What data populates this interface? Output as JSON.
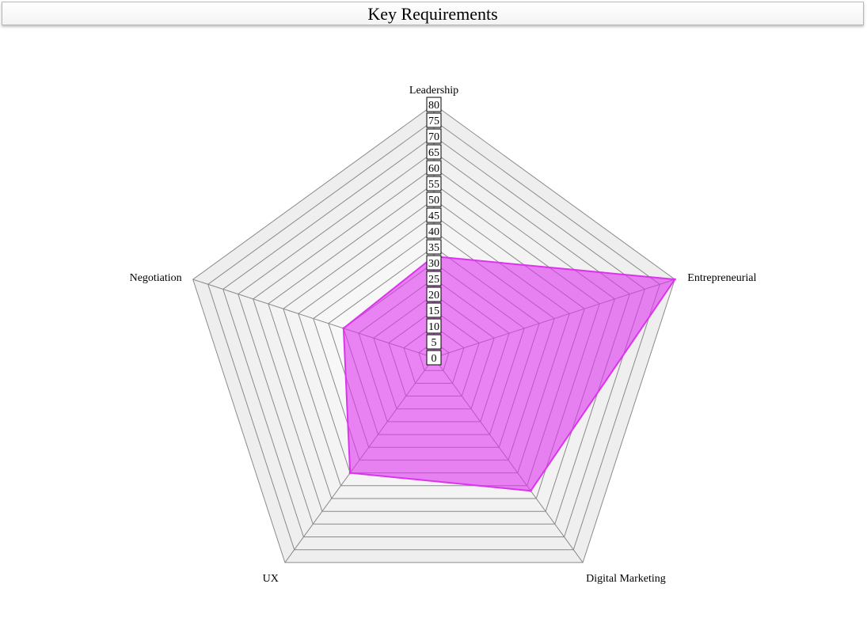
{
  "chart_data": {
    "type": "radar",
    "title": "Key Requirements",
    "axes": [
      "Leadership",
      "Entrepreneurial",
      "Digital Marketing",
      "UX",
      "Negotiation"
    ],
    "series": [
      {
        "values": [
          32,
          80,
          52,
          45,
          30
        ],
        "color": "#dd33ee"
      }
    ],
    "rmax": 80,
    "tick_step": 5,
    "ticks": [
      "0",
      "5",
      "10",
      "15",
      "20",
      "25",
      "30",
      "35",
      "40",
      "45",
      "50",
      "55",
      "60",
      "65",
      "70",
      "75",
      "80"
    ],
    "grid": true
  }
}
